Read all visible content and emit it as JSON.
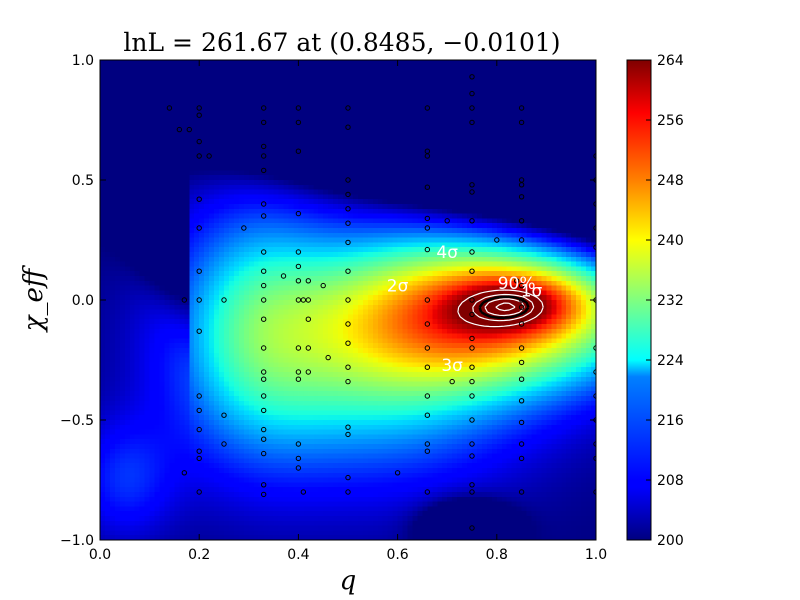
{
  "chart_data": {
    "type": "heatmap",
    "title": "lnL = 261.67 at (0.8485, −0.0101)",
    "xlabel": "q",
    "ylabel": "χ_eff",
    "xlim": [
      0.0,
      1.0
    ],
    "ylim": [
      -1.0,
      1.0
    ],
    "x_ticks": [
      "0.0",
      "0.2",
      "0.4",
      "0.6",
      "0.8",
      "1.0"
    ],
    "y_ticks": [
      "−1.0",
      "−0.5",
      "0.0",
      "0.5",
      "1.0"
    ],
    "colorbar": {
      "colormap": "jet",
      "range": [
        200,
        264
      ],
      "ticks": [
        "200",
        "208",
        "216",
        "224",
        "232",
        "240",
        "248",
        "256",
        "264"
      ]
    },
    "peak": {
      "q": 0.8485,
      "chi_eff": -0.0101,
      "lnL": 261.67
    },
    "contour_labels": [
      {
        "text": "1σ",
        "q": 0.87,
        "chi": 0.04
      },
      {
        "text": "2σ",
        "q": 0.6,
        "chi": 0.06
      },
      {
        "text": "3σ",
        "q": 0.71,
        "chi": -0.27
      },
      {
        "text": "4σ",
        "q": 0.7,
        "chi": 0.2
      },
      {
        "text": "90%",
        "q": 0.84,
        "chi": 0.07
      }
    ],
    "samples": [
      [
        0.14,
        0.8
      ],
      [
        0.16,
        0.71
      ],
      [
        0.17,
        0.0
      ],
      [
        0.17,
        -0.72
      ],
      [
        0.18,
        0.71
      ],
      [
        0.2,
        0.8
      ],
      [
        0.2,
        0.77
      ],
      [
        0.2,
        0.66
      ],
      [
        0.2,
        0.6
      ],
      [
        0.2,
        0.42
      ],
      [
        0.2,
        0.3
      ],
      [
        0.2,
        0.12
      ],
      [
        0.2,
        0.0
      ],
      [
        0.2,
        -0.13
      ],
      [
        0.2,
        -0.4
      ],
      [
        0.2,
        -0.46
      ],
      [
        0.2,
        -0.54
      ],
      [
        0.2,
        -0.63
      ],
      [
        0.2,
        -0.66
      ],
      [
        0.2,
        -0.8
      ],
      [
        0.22,
        0.6
      ],
      [
        0.25,
        0.0
      ],
      [
        0.25,
        -0.48
      ],
      [
        0.25,
        -0.6
      ],
      [
        0.29,
        0.3
      ],
      [
        0.33,
        0.8
      ],
      [
        0.33,
        0.74
      ],
      [
        0.33,
        0.64
      ],
      [
        0.33,
        0.6
      ],
      [
        0.33,
        0.54
      ],
      [
        0.33,
        0.4
      ],
      [
        0.33,
        0.35
      ],
      [
        0.33,
        0.2
      ],
      [
        0.33,
        0.12
      ],
      [
        0.33,
        0.06
      ],
      [
        0.33,
        0.0
      ],
      [
        0.33,
        -0.08
      ],
      [
        0.33,
        -0.2
      ],
      [
        0.33,
        -0.3
      ],
      [
        0.33,
        -0.33
      ],
      [
        0.33,
        -0.4
      ],
      [
        0.33,
        -0.46
      ],
      [
        0.33,
        -0.54
      ],
      [
        0.33,
        -0.58
      ],
      [
        0.33,
        -0.64
      ],
      [
        0.33,
        -0.77
      ],
      [
        0.33,
        -0.81
      ],
      [
        0.37,
        0.1
      ],
      [
        0.4,
        0.8
      ],
      [
        0.4,
        0.74
      ],
      [
        0.4,
        0.62
      ],
      [
        0.4,
        0.36
      ],
      [
        0.4,
        0.2
      ],
      [
        0.4,
        0.14
      ],
      [
        0.4,
        0.08
      ],
      [
        0.4,
        0.0
      ],
      [
        0.4,
        -0.2
      ],
      [
        0.4,
        -0.3
      ],
      [
        0.4,
        -0.33
      ],
      [
        0.4,
        -0.6
      ],
      [
        0.4,
        -0.66
      ],
      [
        0.4,
        -0.7
      ],
      [
        0.41,
        0.0
      ],
      [
        0.41,
        -0.8
      ],
      [
        0.42,
        0.08
      ],
      [
        0.42,
        0.0
      ],
      [
        0.42,
        -0.08
      ],
      [
        0.42,
        -0.2
      ],
      [
        0.42,
        -0.3
      ],
      [
        0.45,
        0.06
      ],
      [
        0.46,
        -0.24
      ],
      [
        0.5,
        0.8
      ],
      [
        0.5,
        0.72
      ],
      [
        0.5,
        0.5
      ],
      [
        0.5,
        0.44
      ],
      [
        0.5,
        0.38
      ],
      [
        0.5,
        0.32
      ],
      [
        0.5,
        0.24
      ],
      [
        0.5,
        0.12
      ],
      [
        0.5,
        0.0
      ],
      [
        0.5,
        -0.1
      ],
      [
        0.5,
        -0.18
      ],
      [
        0.5,
        -0.28
      ],
      [
        0.5,
        -0.34
      ],
      [
        0.5,
        -0.53
      ],
      [
        0.5,
        -0.56
      ],
      [
        0.5,
        -0.74
      ],
      [
        0.5,
        -0.8
      ],
      [
        0.6,
        -0.72
      ],
      [
        0.66,
        0.8
      ],
      [
        0.66,
        0.62
      ],
      [
        0.66,
        0.6
      ],
      [
        0.66,
        0.47
      ],
      [
        0.66,
        0.34
      ],
      [
        0.66,
        0.3
      ],
      [
        0.66,
        0.21
      ],
      [
        0.66,
        0.0
      ],
      [
        0.66,
        -0.1
      ],
      [
        0.66,
        -0.2
      ],
      [
        0.66,
        -0.28
      ],
      [
        0.66,
        -0.4
      ],
      [
        0.66,
        -0.48
      ],
      [
        0.66,
        -0.6
      ],
      [
        0.66,
        -0.63
      ],
      [
        0.66,
        -0.8
      ],
      [
        0.7,
        0.33
      ],
      [
        0.71,
        -0.34
      ],
      [
        0.75,
        0.93
      ],
      [
        0.75,
        0.86
      ],
      [
        0.75,
        0.8
      ],
      [
        0.75,
        0.74
      ],
      [
        0.75,
        0.48
      ],
      [
        0.75,
        0.45
      ],
      [
        0.75,
        0.33
      ],
      [
        0.75,
        0.2
      ],
      [
        0.75,
        0.12
      ],
      [
        0.75,
        0.0
      ],
      [
        0.75,
        -0.06
      ],
      [
        0.75,
        -0.16
      ],
      [
        0.75,
        -0.2
      ],
      [
        0.75,
        -0.28
      ],
      [
        0.75,
        -0.34
      ],
      [
        0.75,
        -0.4
      ],
      [
        0.75,
        -0.5
      ],
      [
        0.75,
        -0.6
      ],
      [
        0.75,
        -0.65
      ],
      [
        0.75,
        -0.77
      ],
      [
        0.75,
        -0.8
      ],
      [
        0.75,
        -0.95
      ],
      [
        0.8,
        0.25
      ],
      [
        0.84,
        0.08
      ],
      [
        0.85,
        0.8
      ],
      [
        0.85,
        0.74
      ],
      [
        0.85,
        0.5
      ],
      [
        0.85,
        0.48
      ],
      [
        0.85,
        0.43
      ],
      [
        0.85,
        0.33
      ],
      [
        0.85,
        0.25
      ],
      [
        0.85,
        0.06
      ],
      [
        0.85,
        0.0
      ],
      [
        0.85,
        -0.03
      ],
      [
        0.85,
        -0.1
      ],
      [
        0.85,
        -0.2
      ],
      [
        0.85,
        -0.26
      ],
      [
        0.85,
        -0.33
      ],
      [
        0.85,
        -0.42
      ],
      [
        0.85,
        -0.51
      ],
      [
        0.85,
        -0.6
      ],
      [
        0.85,
        -0.66
      ],
      [
        0.85,
        -0.8
      ],
      [
        1.0,
        0.6
      ],
      [
        1.0,
        0.5
      ],
      [
        1.0,
        0.4
      ],
      [
        1.0,
        0.3
      ],
      [
        1.0,
        0.22
      ],
      [
        1.0,
        0.0
      ],
      [
        1.0,
        -0.2
      ],
      [
        1.0,
        -0.3
      ],
      [
        1.0,
        -0.4
      ],
      [
        1.0,
        -0.5
      ],
      [
        1.0,
        -0.6
      ],
      [
        1.0,
        -0.66
      ],
      [
        1.0,
        -0.8
      ]
    ]
  }
}
